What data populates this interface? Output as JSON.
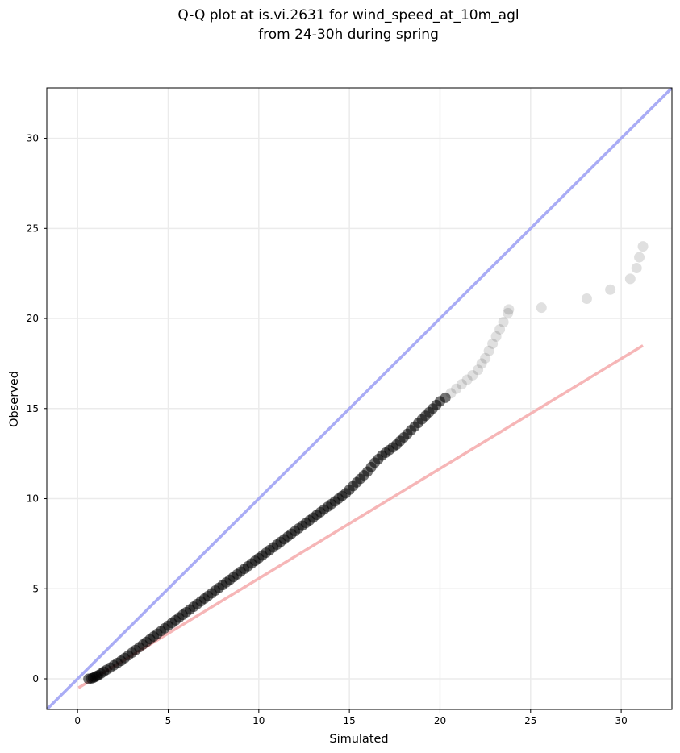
{
  "chart_data": {
    "type": "scatter",
    "title_lines": [
      "Q-Q plot at is.vi.2631 for wind_speed_at_10m_agl",
      "from 24-30h during spring"
    ],
    "xlabel": "Simulated",
    "ylabel": "Observed",
    "xlim": [
      -1.7,
      32.8
    ],
    "ylim": [
      -1.7,
      32.8
    ],
    "xticks": [
      0,
      5,
      10,
      15,
      20,
      25,
      30
    ],
    "yticks": [
      0,
      5,
      10,
      15,
      20,
      25,
      30
    ],
    "grid": true,
    "colors": {
      "points": "#000000",
      "identity_line": "#a9acf5",
      "fit_line": "#f4a9aa",
      "grid": "#ebebeb"
    },
    "identity_line": {
      "x": [
        -1.7,
        32.8
      ],
      "y": [
        -1.7,
        32.8
      ]
    },
    "fit_line": {
      "x": [
        0.05,
        31.2
      ],
      "y": [
        -0.5,
        18.5
      ]
    },
    "points": {
      "x": [
        0.6,
        0.75,
        0.85,
        0.95,
        1.05,
        1.15,
        1.3,
        1.45,
        1.6,
        1.8,
        2.0,
        2.2,
        2.4,
        2.6,
        2.8,
        3.0,
        3.2,
        3.4,
        3.6,
        3.8,
        4.0,
        4.2,
        4.4,
        4.6,
        4.8,
        5.0,
        5.2,
        5.4,
        5.6,
        5.8,
        6.0,
        6.2,
        6.4,
        6.6,
        6.8,
        7.0,
        7.2,
        7.4,
        7.6,
        7.8,
        8.0,
        8.2,
        8.4,
        8.6,
        8.8,
        9.0,
        9.2,
        9.4,
        9.6,
        9.8,
        10.0,
        10.2,
        10.4,
        10.6,
        10.8,
        11.0,
        11.2,
        11.4,
        11.6,
        11.8,
        12.0,
        12.2,
        12.4,
        12.6,
        12.8,
        13.0,
        13.2,
        13.4,
        13.6,
        13.8,
        14.0,
        14.2,
        14.4,
        14.6,
        14.8,
        15.0,
        15.2,
        15.4,
        15.6,
        15.8,
        16.0,
        16.2,
        16.4,
        16.6,
        16.8,
        17.0,
        17.2,
        17.4,
        17.6,
        17.8,
        18.0,
        18.2,
        18.4,
        18.6,
        18.8,
        19.0,
        19.2,
        19.4,
        19.6,
        19.8,
        20.0,
        20.3,
        20.6,
        20.9,
        21.2,
        21.5,
        21.8,
        22.1,
        22.3,
        22.5,
        22.7,
        22.9,
        23.1,
        23.3,
        23.5,
        23.75,
        23.8,
        25.6,
        28.1,
        29.4,
        30.5,
        30.85,
        31.0,
        31.2
      ],
      "y": [
        0.0,
        0.02,
        0.05,
        0.1,
        0.15,
        0.2,
        0.3,
        0.4,
        0.5,
        0.62,
        0.75,
        0.88,
        1.0,
        1.15,
        1.3,
        1.45,
        1.6,
        1.75,
        1.9,
        2.05,
        2.2,
        2.35,
        2.5,
        2.65,
        2.8,
        2.95,
        3.1,
        3.25,
        3.4,
        3.55,
        3.7,
        3.85,
        4.0,
        4.15,
        4.3,
        4.45,
        4.6,
        4.75,
        4.9,
        5.05,
        5.2,
        5.35,
        5.5,
        5.65,
        5.8,
        5.95,
        6.1,
        6.25,
        6.4,
        6.55,
        6.7,
        6.85,
        7.0,
        7.15,
        7.3,
        7.45,
        7.6,
        7.75,
        7.9,
        8.05,
        8.2,
        8.35,
        8.5,
        8.65,
        8.8,
        8.95,
        9.1,
        9.25,
        9.4,
        9.55,
        9.7,
        9.85,
        10.0,
        10.15,
        10.3,
        10.5,
        10.7,
        10.9,
        11.1,
        11.3,
        11.5,
        11.75,
        12.0,
        12.2,
        12.4,
        12.55,
        12.7,
        12.85,
        13.0,
        13.2,
        13.4,
        13.6,
        13.8,
        14.0,
        14.2,
        14.4,
        14.6,
        14.8,
        15.0,
        15.2,
        15.4,
        15.6,
        15.85,
        16.1,
        16.35,
        16.6,
        16.85,
        17.15,
        17.5,
        17.8,
        18.2,
        18.6,
        19.0,
        19.4,
        19.8,
        20.3,
        20.5,
        20.6,
        21.1,
        21.6,
        22.2,
        22.8,
        23.4,
        24.0
      ]
    }
  }
}
